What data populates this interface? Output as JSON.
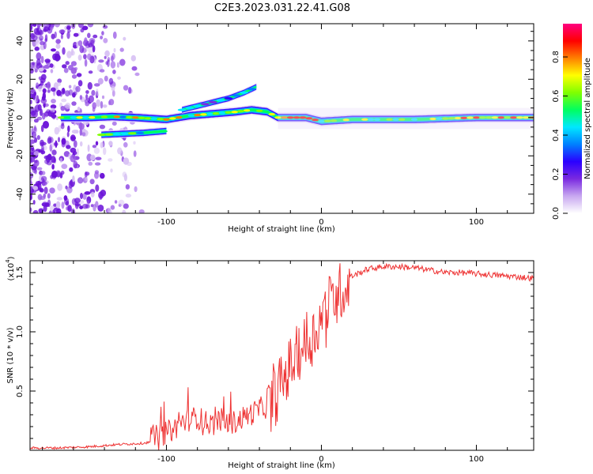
{
  "title": "C2E3.2023.031.22.41.G08",
  "chart_data": [
    {
      "type": "heatmap",
      "name": "spectrogram",
      "xlabel": "Height of straight line (km)",
      "ylabel": "Frequency (Hz)",
      "xlim": [
        -188,
        137
      ],
      "ylim": [
        -50,
        49
      ],
      "xticks": [
        -100,
        0,
        100
      ],
      "yticks": [
        -40,
        -20,
        0,
        20,
        40
      ],
      "colorbar": {
        "label": "Normalized spectral amplitude",
        "range": [
          0,
          0.97
        ],
        "ticks": [
          0.0,
          0.2,
          0.4,
          0.6,
          0.8
        ],
        "colors": [
          "#ffffff",
          "#c8a8f0",
          "#7a2ae0",
          "#2a00ff",
          "#0080ff",
          "#00e8ff",
          "#00ff60",
          "#80ff00",
          "#ffff00",
          "#ff8000",
          "#ff0000",
          "#ff0080"
        ]
      },
      "main_trace": [
        [
          -168,
          0
        ],
        [
          -150,
          0
        ],
        [
          -135,
          0.5
        ],
        [
          -120,
          0
        ],
        [
          -100,
          -1
        ],
        [
          -85,
          1
        ],
        [
          -70,
          2
        ],
        [
          -55,
          3
        ],
        [
          -45,
          4
        ],
        [
          -35,
          3
        ],
        [
          -28,
          0
        ],
        [
          -10,
          0
        ],
        [
          0,
          -2
        ],
        [
          20,
          -1
        ],
        [
          60,
          -1
        ],
        [
          100,
          0
        ],
        [
          137,
          0
        ]
      ],
      "lower_trace": [
        [
          -142,
          -9
        ],
        [
          -115,
          -8
        ],
        [
          -100,
          -7
        ]
      ],
      "upper_trace": [
        [
          -90,
          4
        ],
        [
          -75,
          7
        ],
        [
          -60,
          10
        ],
        [
          -50,
          13
        ],
        [
          -42,
          16
        ]
      ]
    },
    {
      "type": "line",
      "name": "snr",
      "xlabel": "Height of straight line (km)",
      "ylabel": "SNR (10 * v/v)",
      "y_scale_label": "(x10",
      "y_scale_exp": "4",
      "xlim": [
        -188,
        137
      ],
      "ylim": [
        0,
        1.6
      ],
      "xticks": [
        -100,
        0,
        100
      ],
      "yticks": [
        0.5,
        1.0,
        1.5
      ],
      "ytick_labels": [
        "0.5",
        "1.0",
        "1.5"
      ],
      "series": [
        {
          "name": "SNR",
          "color": "#ee3333",
          "x": [
            -188,
            -170,
            -150,
            -130,
            -115,
            -105,
            -100,
            -95,
            -90,
            -85,
            -80,
            -75,
            -70,
            -65,
            -60,
            -55,
            -50,
            -45,
            -40,
            -35,
            -30,
            -25,
            -20,
            -15,
            -10,
            -5,
            0,
            5,
            10,
            15,
            20,
            25,
            30,
            40,
            50,
            60,
            70,
            80,
            90,
            100,
            110,
            120,
            130,
            137
          ],
          "y": [
            0.02,
            0.02,
            0.03,
            0.05,
            0.06,
            0.08,
            0.11,
            0.14,
            0.2,
            0.22,
            0.24,
            0.2,
            0.18,
            0.22,
            0.19,
            0.2,
            0.24,
            0.27,
            0.31,
            0.33,
            0.44,
            0.58,
            0.72,
            0.82,
            0.9,
            0.97,
            1.12,
            1.24,
            1.32,
            1.38,
            1.47,
            1.5,
            1.53,
            1.55,
            1.55,
            1.54,
            1.52,
            1.5,
            1.5,
            1.49,
            1.48,
            1.47,
            1.46,
            1.45
          ]
        }
      ]
    }
  ]
}
